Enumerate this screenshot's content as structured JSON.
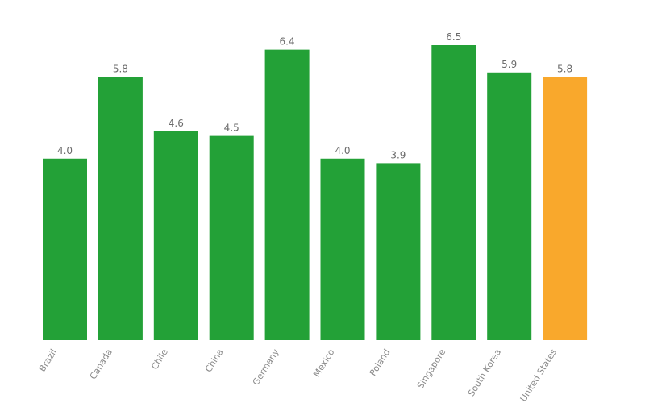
{
  "chart_data": {
    "type": "bar",
    "categories": [
      "Brazil",
      "Canada",
      "Chile",
      "China",
      "Germany",
      "Mexico",
      "Poland",
      "Singapore",
      "South Korea",
      "United States"
    ],
    "values": [
      4.0,
      5.8,
      4.6,
      4.5,
      6.4,
      4.0,
      3.9,
      6.5,
      5.9,
      5.8
    ],
    "value_labels": [
      "4.0",
      "5.8",
      "4.6",
      "4.5",
      "6.4",
      "4.0",
      "3.9",
      "6.5",
      "5.9",
      "5.8"
    ],
    "colors": [
      "#23a137",
      "#23a137",
      "#23a137",
      "#23a137",
      "#23a137",
      "#23a137",
      "#23a137",
      "#23a137",
      "#23a137",
      "#f9a82c"
    ]
  }
}
